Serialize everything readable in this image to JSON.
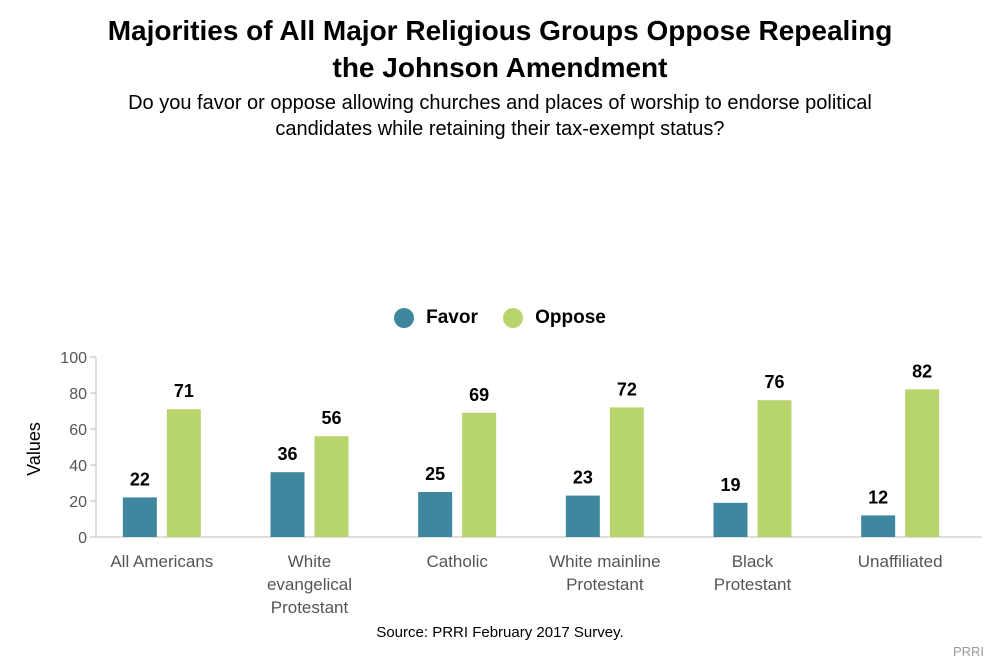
{
  "title_line1": "Majorities of All Major Religious Groups Oppose Repealing",
  "title_line2": "the Johnson Amendment",
  "subtitle_line1": "Do you favor or oppose allowing churches and places of worship to endorse political",
  "subtitle_line2": "candidates while retaining their tax-exempt status?",
  "source": "Source: PRRI February 2017 Survey.",
  "brand": "PRRI",
  "colors": {
    "favor": "#3f869f",
    "oppose": "#b8d46c",
    "axis": "#bdbdbd",
    "tick_text": "#555555"
  },
  "chart_data": {
    "type": "bar",
    "ylabel": "Values",
    "xlabel": "",
    "ylim": [
      0,
      100
    ],
    "yticks": [
      0,
      20,
      40,
      60,
      80,
      100
    ],
    "yticklabels": [
      "0",
      "20",
      "40",
      "60",
      "80",
      "100"
    ],
    "legend_position": "top",
    "categories": [
      [
        "All Americans"
      ],
      [
        "White",
        "evangelical",
        "Protestant"
      ],
      [
        "Catholic"
      ],
      [
        "White mainline",
        "Protestant"
      ],
      [
        "Black",
        "Protestant"
      ],
      [
        "Unaffiliated"
      ]
    ],
    "series": [
      {
        "name": "Favor",
        "values": [
          22,
          36,
          25,
          23,
          19,
          12
        ],
        "labels": [
          "22",
          "36",
          "25",
          "23",
          "19",
          "12"
        ]
      },
      {
        "name": "Oppose",
        "values": [
          71,
          56,
          69,
          72,
          76,
          82
        ],
        "labels": [
          "71",
          "56",
          "69",
          "72",
          "76",
          "82"
        ]
      }
    ]
  }
}
